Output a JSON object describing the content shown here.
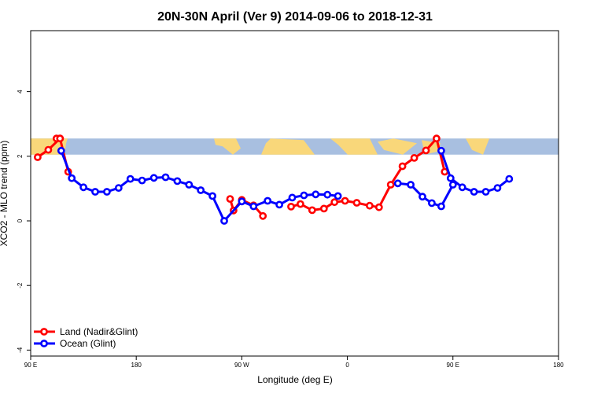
{
  "chart_data": {
    "type": "line",
    "title": "20N-30N April (Ver 9)   2014-09-06 to 2018-12-31",
    "xlabel": "Longitude (deg E)",
    "ylabel": "XCO2 - MLO trend (ppm)",
    "xlim": [
      90,
      540
    ],
    "ylim": [
      -4,
      5.8
    ],
    "x_ticks": [
      {
        "value": 90,
        "label": "90 E"
      },
      {
        "value": 180,
        "label": "180"
      },
      {
        "value": 270,
        "label": "90 W"
      },
      {
        "value": 360,
        "label": "0"
      },
      {
        "value": 450,
        "label": "90 E"
      },
      {
        "value": 540,
        "label": "180"
      }
    ],
    "y_ticks": [
      {
        "value": -4,
        "label": "-4"
      },
      {
        "value": -2,
        "label": "-2"
      },
      {
        "value": 0,
        "label": "0"
      },
      {
        "value": 2,
        "label": "2"
      },
      {
        "value": 4,
        "label": "4"
      }
    ],
    "grid": false,
    "legend_position": "bottom-left",
    "map_band": {
      "y_range": [
        2.05,
        2.55
      ],
      "ocean_color": "#a8bfe0",
      "land_color": "#f9d77a"
    },
    "series": [
      {
        "name": "Land (Nadir&Glint)",
        "color": "#ff0000",
        "segments": [
          [
            [
              96,
              1.97
            ],
            [
              105,
              2.2
            ],
            [
              115,
              2.55
            ],
            [
              122,
              1.52
            ]
          ],
          [
            [
              312,
              0.44
            ],
            [
              320,
              0.52
            ],
            [
              330,
              0.33
            ],
            [
              340,
              0.38
            ],
            [
              349,
              0.58
            ],
            [
              358,
              0.62
            ],
            [
              368,
              0.56
            ],
            [
              379,
              0.47
            ],
            [
              387,
              0.42
            ],
            [
              397,
              1.12
            ],
            [
              407,
              1.69
            ],
            [
              417,
              1.95
            ],
            [
              427,
              2.18
            ],
            [
              436,
              2.55
            ],
            [
              443,
              1.52
            ]
          ],
          [
            [
              112,
              2.55
            ],
            [
              115,
              2.55
            ]
          ],
          [
            [
              260,
              0.68
            ],
            [
              263,
              0.32
            ],
            [
              270,
              0.65
            ],
            [
              280,
              0.48
            ],
            [
              288,
              0.15
            ]
          ]
        ]
      },
      {
        "name": "Ocean (Glint)",
        "color": "#0000ff",
        "segments": [
          [
            [
              116,
              2.17
            ],
            [
              125,
              1.32
            ],
            [
              135,
              1.04
            ],
            [
              145,
              0.9
            ],
            [
              155,
              0.9
            ],
            [
              165,
              1.02
            ],
            [
              175,
              1.3
            ],
            [
              185,
              1.25
            ],
            [
              195,
              1.33
            ],
            [
              205,
              1.35
            ],
            [
              215,
              1.23
            ],
            [
              225,
              1.12
            ],
            [
              235,
              0.95
            ],
            [
              245,
              0.77
            ],
            [
              255,
              0.0
            ],
            [
              270,
              0.6
            ],
            [
              280,
              0.45
            ],
            [
              292,
              0.62
            ],
            [
              302,
              0.5
            ],
            [
              313,
              0.72
            ],
            [
              323,
              0.79
            ],
            [
              333,
              0.82
            ],
            [
              343,
              0.81
            ],
            [
              352,
              0.77
            ]
          ],
          [
            [
              403,
              1.16
            ],
            [
              414,
              1.12
            ],
            [
              424,
              0.75
            ],
            [
              432,
              0.55
            ],
            [
              440,
              0.45
            ],
            [
              450,
              1.12
            ]
          ],
          [
            [
              440,
              2.17
            ],
            [
              448,
              1.32
            ],
            [
              458,
              1.04
            ],
            [
              468,
              0.9
            ],
            [
              478,
              0.9
            ],
            [
              488,
              1.02
            ],
            [
              498,
              1.3
            ]
          ]
        ]
      }
    ]
  }
}
